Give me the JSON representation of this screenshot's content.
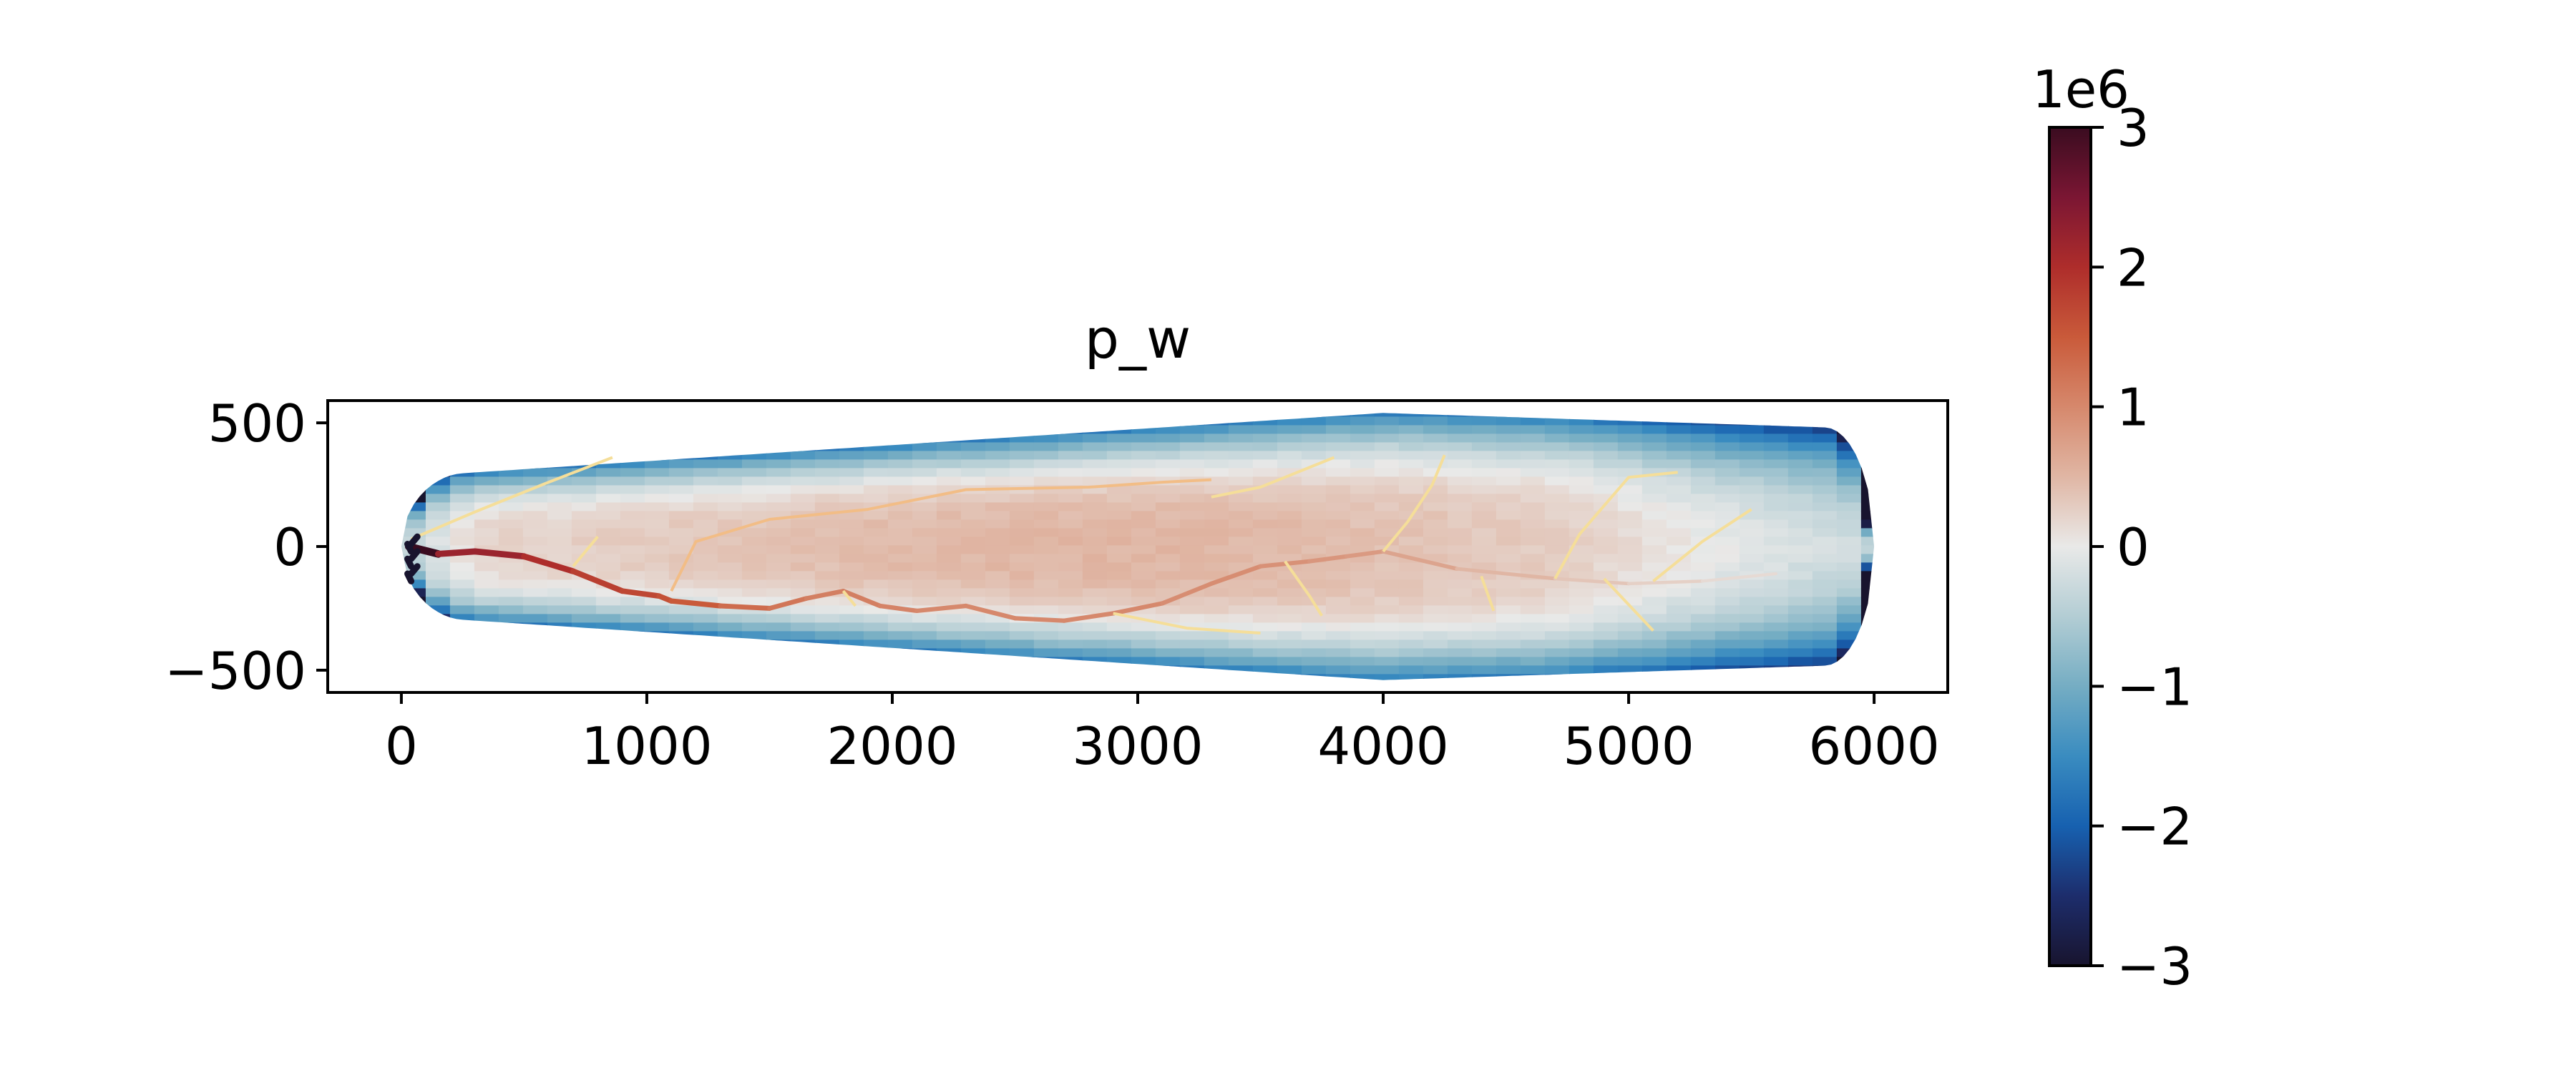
{
  "chart_data": {
    "type": "heatmap",
    "title": "p_w",
    "xlabel": "",
    "ylabel": "",
    "xlim": [
      -300,
      6300
    ],
    "ylim": [
      -590,
      590
    ],
    "x_ticks": [
      0,
      1000,
      2000,
      3000,
      4000,
      5000,
      6000
    ],
    "y_ticks": [
      -500,
      0,
      500
    ],
    "x_tick_labels": [
      "0",
      "1000",
      "2000",
      "3000",
      "4000",
      "5000",
      "6000"
    ],
    "y_tick_labels": [
      "−500",
      "0",
      "500"
    ],
    "field": {
      "description_free": true,
      "domain_x": [
        0,
        6000
      ],
      "domain_half_width_max": 540,
      "peak_value": 0.45,
      "peak_x": 2800,
      "edge_value": -1.6,
      "outlet_value": -1.2
    },
    "channels": {
      "main": {
        "x": [
          30,
          150,
          300,
          500,
          700,
          900,
          1050,
          1100,
          1300,
          1500,
          1650,
          1800,
          1950,
          2100,
          2300,
          2500,
          2700,
          2900,
          3100,
          3300,
          3500,
          3700,
          3850,
          4000,
          4300,
          4700,
          5000,
          5300,
          5600
        ],
        "y": [
          0,
          -30,
          -20,
          -40,
          -100,
          -180,
          -200,
          -220,
          -240,
          -250,
          -210,
          -180,
          -240,
          -260,
          -240,
          -290,
          -300,
          -270,
          -230,
          -150,
          -80,
          -60,
          -40,
          -20,
          -90,
          -130,
          -150,
          -140,
          -110
        ],
        "values": [
          3.0,
          2.2,
          2.2,
          2.0,
          1.8,
          1.7,
          1.6,
          1.5,
          1.3,
          1.2,
          1.1,
          1.1,
          1.05,
          1.0,
          1.0,
          1.0,
          1.0,
          1.0,
          0.95,
          0.95,
          0.9,
          0.85,
          0.8,
          0.7,
          0.5,
          0.35,
          0.25,
          0.15,
          0.1
        ]
      },
      "outlet_cluster": {
        "x": 40,
        "y_range": [
          -140,
          10
        ],
        "value": 3.0
      }
    },
    "colorbar": {
      "min": -3,
      "max": 3,
      "ticks": [
        3,
        2,
        1,
        0,
        -1,
        -2,
        -3
      ],
      "tick_labels": [
        "3",
        "2",
        "1",
        "0",
        "−1",
        "−2",
        "−3"
      ],
      "multiplier_label": "1e6",
      "colormap_stops": [
        {
          "v": -3.0,
          "c": "#18142e"
        },
        {
          "v": -2.5,
          "c": "#1d2d6c"
        },
        {
          "v": -2.0,
          "c": "#1761b0"
        },
        {
          "v": -1.5,
          "c": "#3a8cc0"
        },
        {
          "v": -1.0,
          "c": "#75adc3"
        },
        {
          "v": -0.5,
          "c": "#b3cdd4"
        },
        {
          "v": 0.0,
          "c": "#e9e9e8"
        },
        {
          "v": 0.5,
          "c": "#e0b6a4"
        },
        {
          "v": 1.0,
          "c": "#d6886c"
        },
        {
          "v": 1.5,
          "c": "#c95a3a"
        },
        {
          "v": 2.0,
          "c": "#ae2d2b"
        },
        {
          "v": 2.5,
          "c": "#7b1633"
        },
        {
          "v": 3.0,
          "c": "#3a0c20"
        }
      ]
    }
  },
  "colors": {
    "axis": "#000000",
    "background": "#ffffff",
    "tributary_light": "#f5de99",
    "tributary_mid": "#f2bd86"
  }
}
